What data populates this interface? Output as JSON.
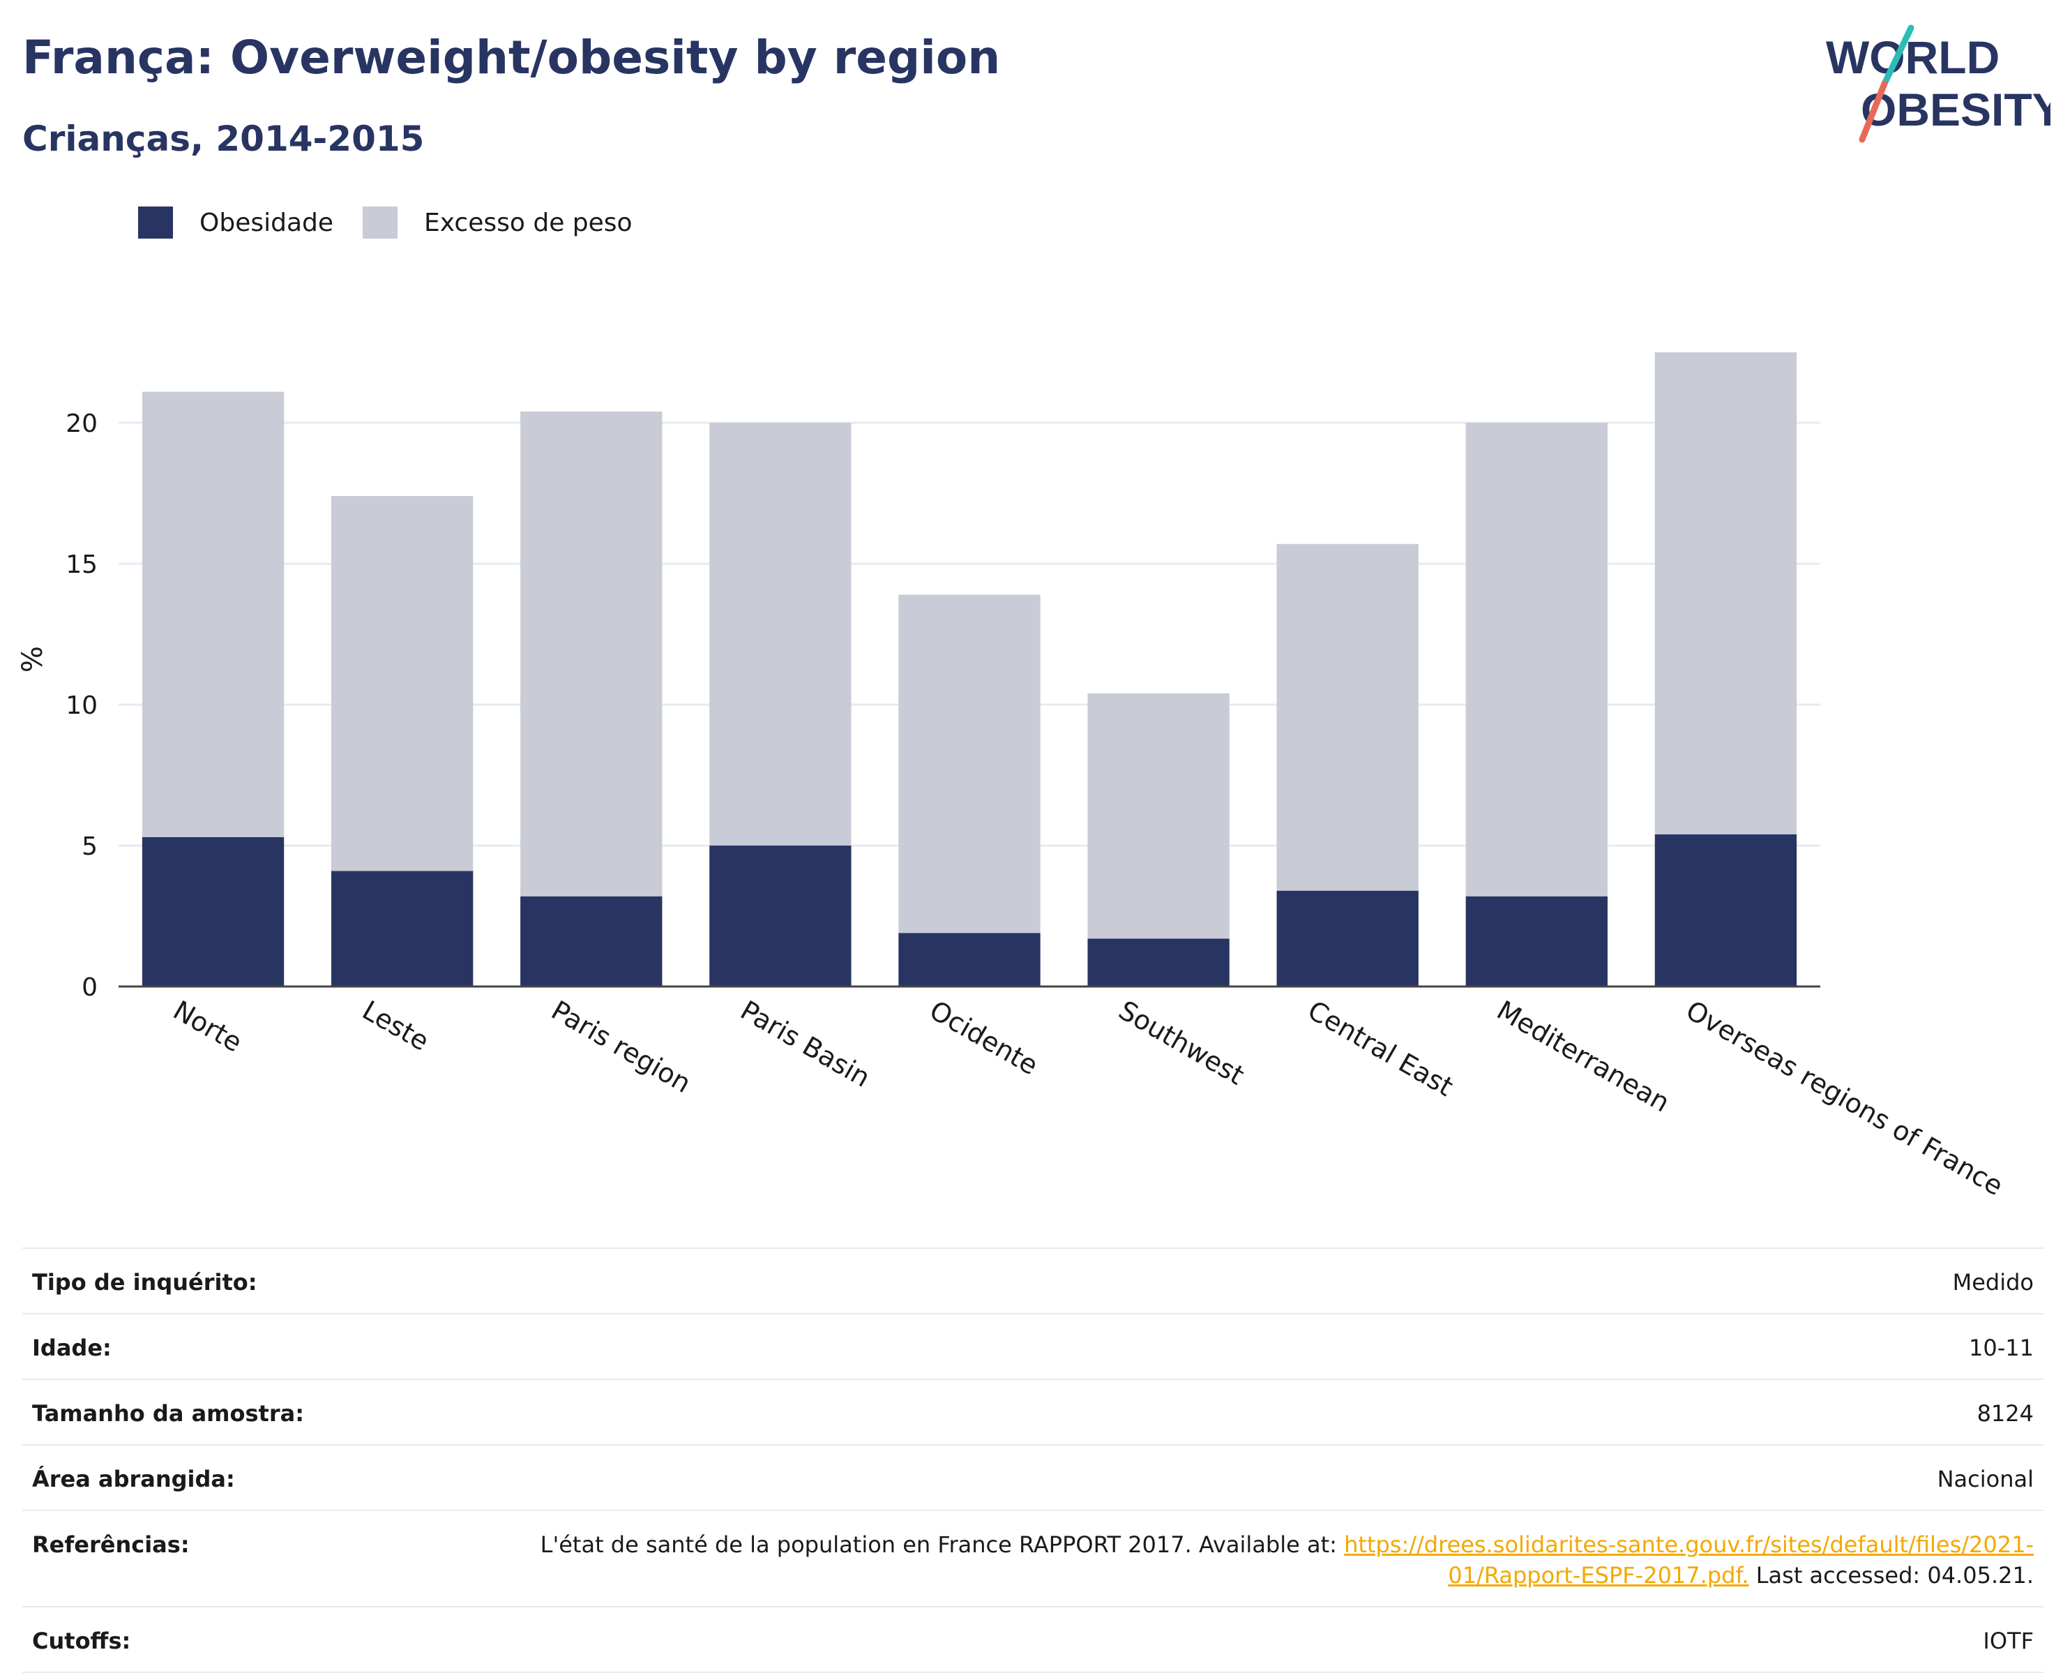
{
  "header": {
    "title": "França: Overweight/obesity by region",
    "subtitle": "Crianças, 2014-2015",
    "logo_line1": "WORLD",
    "logo_line2": "OBESITY"
  },
  "legend": [
    {
      "label": "Obesidade",
      "color": "#283562"
    },
    {
      "label": "Excesso de peso",
      "color": "#c9cbd7"
    }
  ],
  "chart_data": {
    "type": "bar",
    "stacked": true,
    "categories": [
      "Norte",
      "Leste",
      "Paris region",
      "Paris Basin",
      "Ocidente",
      "Southwest",
      "Central East",
      "Mediterranean",
      "Overseas regions of France"
    ],
    "series": [
      {
        "name": "Obesidade",
        "color": "#283562",
        "values": [
          5.3,
          4.1,
          3.2,
          5.0,
          1.9,
          1.7,
          3.4,
          3.2,
          5.4
        ]
      },
      {
        "name": "Excesso de peso",
        "color": "#c9cbd7",
        "values": [
          15.8,
          13.3,
          17.2,
          15.0,
          12.0,
          8.7,
          12.3,
          16.8,
          17.1
        ]
      }
    ],
    "ylabel": "%",
    "xlabel": "",
    "ylim": [
      0,
      22.5
    ],
    "yticks": [
      0,
      5,
      10,
      15,
      20
    ],
    "grid": true,
    "legend_position": "top-left"
  },
  "info": [
    {
      "label": "Tipo de inquérito:",
      "value": "Medido"
    },
    {
      "label": "Idade:",
      "value": "10-11"
    },
    {
      "label": "Tamanho da amostra:",
      "value": "8124"
    },
    {
      "label": "Área abrangida:",
      "value": "Nacional"
    },
    {
      "label": "Referências:",
      "value_pre": "L'état de santé de la population en France RAPPORT 2017. Available at: ",
      "link": "https://drees.solidarites-sante.gouv.fr/sites/default/files/2021-01/Rapport-ESPF-2017.pdf.",
      "value_post": " Last accessed: 04.05.21."
    },
    {
      "label": "Cutoffs:",
      "value": "IOTF"
    }
  ]
}
